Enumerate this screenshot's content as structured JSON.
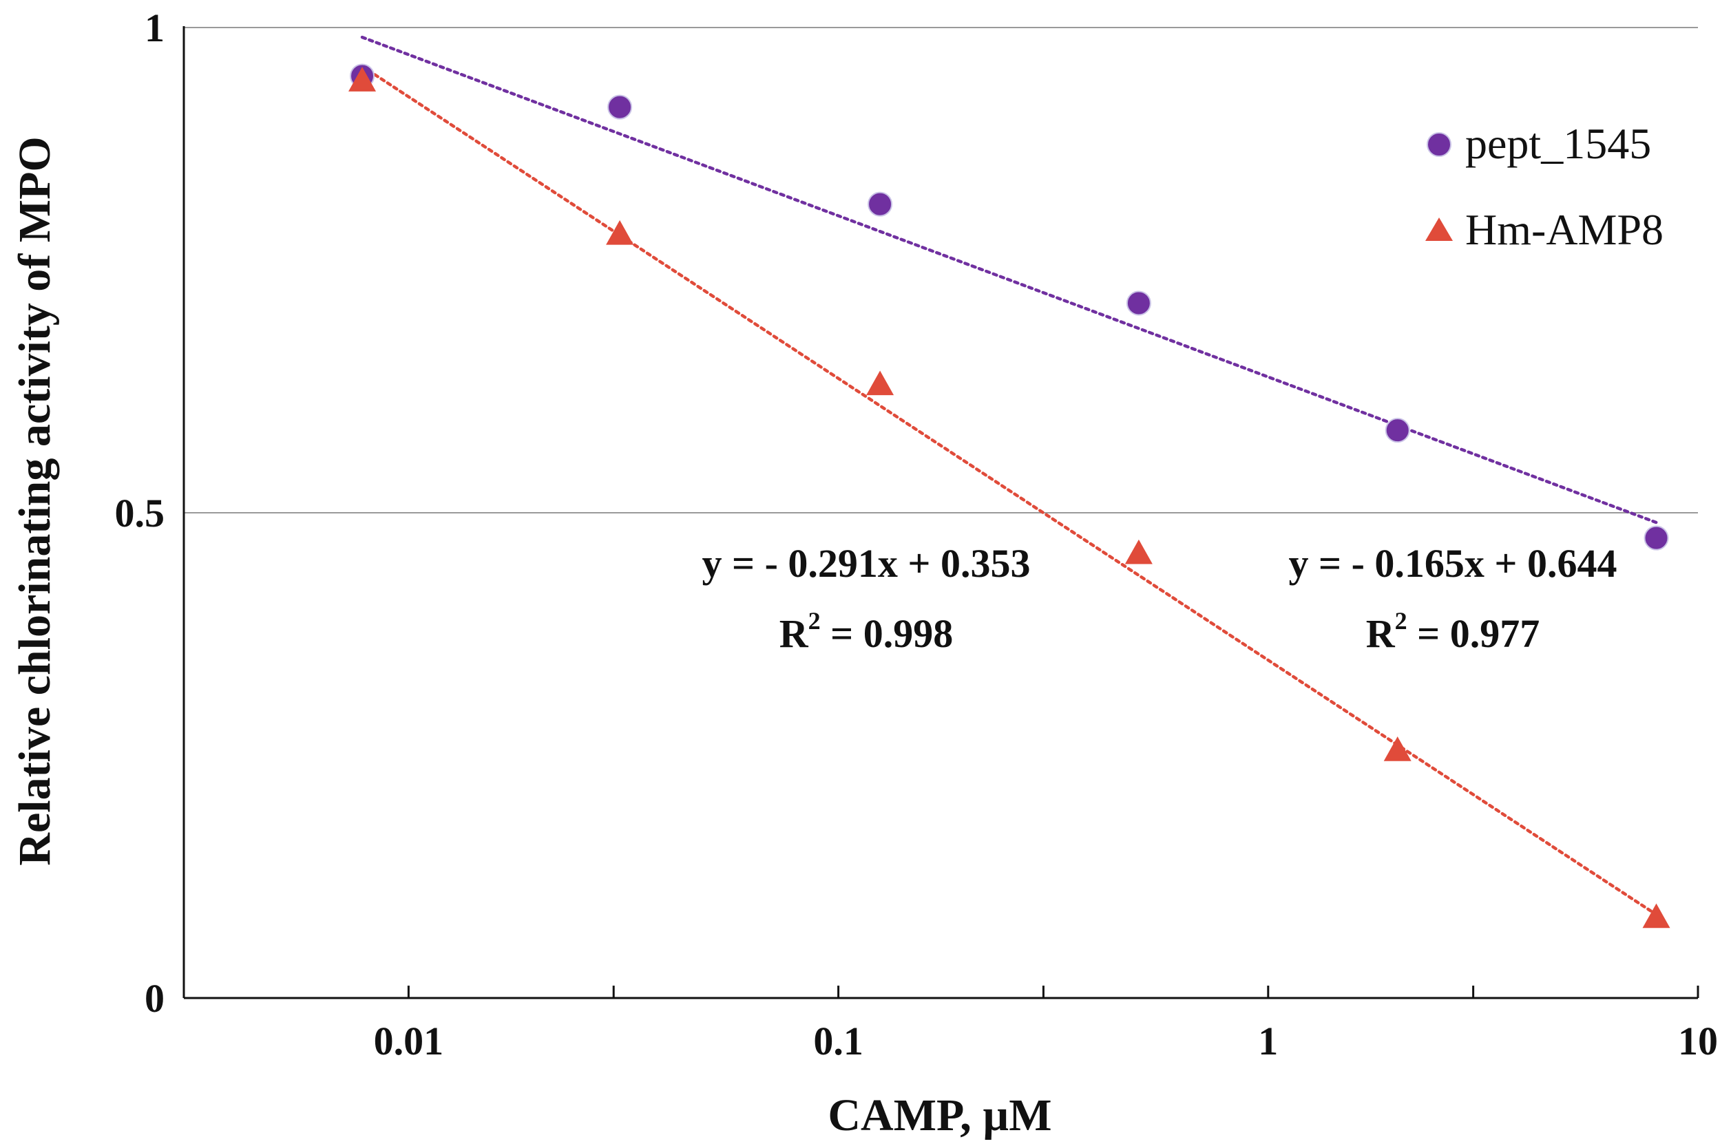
{
  "chart_data": {
    "type": "scatter",
    "title": "",
    "xlabel": "CAMP, µM",
    "ylabel": "Relative chlorinating activity of MPO",
    "x_scale": "log",
    "xlim": [
      0.003,
      10
    ],
    "ylim": [
      0,
      1
    ],
    "x_ticks": [
      {
        "value": 0.01,
        "label": "0.01"
      },
      {
        "value": 0.1,
        "label": "0.1"
      },
      {
        "value": 1,
        "label": "1"
      },
      {
        "value": 10,
        "label": "10"
      }
    ],
    "x_minor_ticks": [
      0.03,
      0.3,
      3
    ],
    "y_ticks": [
      {
        "value": 0,
        "label": "0"
      },
      {
        "value": 0.5,
        "label": "0.5"
      },
      {
        "value": 1,
        "label": "1"
      }
    ],
    "grid": {
      "y": true,
      "x": false
    },
    "legend_position": "top-right",
    "series": [
      {
        "name": "pept_1545",
        "marker": "circle",
        "color": "#7030A0",
        "x": [
          0.0078,
          0.031,
          0.125,
          0.5,
          2,
          8
        ],
        "y": [
          0.95,
          0.918,
          0.818,
          0.716,
          0.585,
          0.474
        ],
        "trendline": {
          "type": "linear-log",
          "x_range": [
            0.0078,
            8
          ],
          "y_range": [
            0.99,
            0.49
          ],
          "color": "#7030A0",
          "equation": "y = - 0.165x + 0.644",
          "r2_base": "R",
          "r2_sup": "2",
          "r2_value": " = 0.977"
        }
      },
      {
        "name": "Hm-AMP8",
        "marker": "triangle",
        "color": "#E04B3A",
        "x": [
          0.0078,
          0.031,
          0.125,
          0.5,
          2,
          8
        ],
        "y": [
          0.945,
          0.787,
          0.632,
          0.458,
          0.255,
          0.083
        ],
        "trendline": {
          "type": "linear-log",
          "x_range": [
            0.0078,
            8
          ],
          "y_range": [
            0.96,
            0.086
          ],
          "color": "#E04B3A",
          "equation": "y = - 0.291x + 0.353",
          "r2_base": "R",
          "r2_sup": "2",
          "r2_value": " = 0.998"
        }
      }
    ]
  }
}
